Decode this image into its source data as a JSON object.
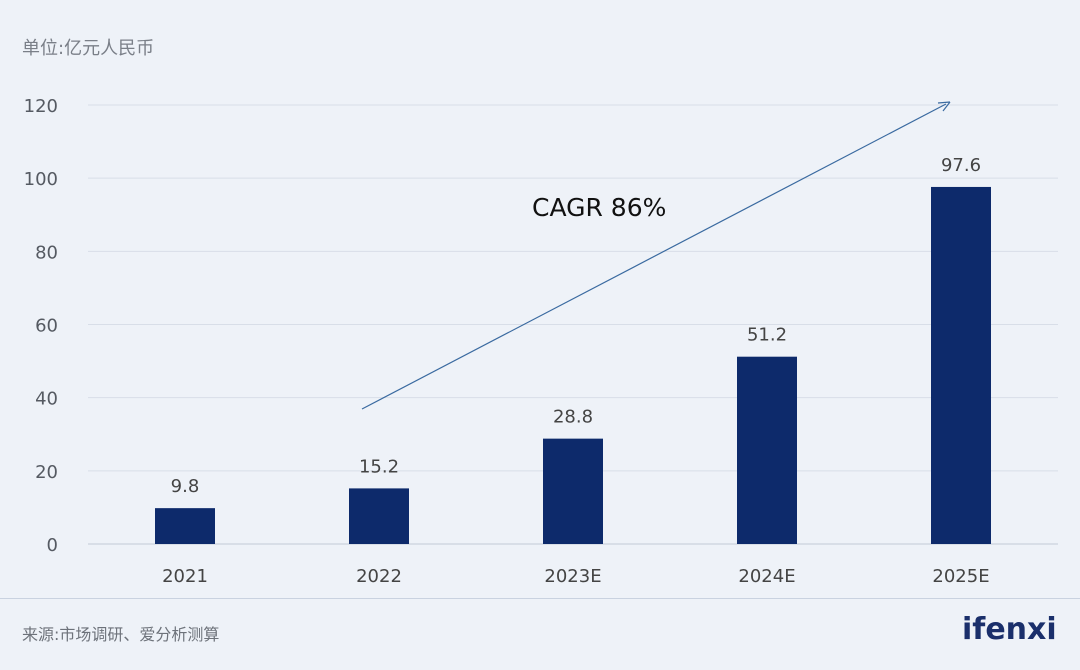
{
  "unit_label": "单位:亿元人民币",
  "source": "来源:市场调研、爱分析测算",
  "logo": "ifenxi",
  "chart_data": {
    "type": "bar",
    "categories": [
      "2021",
      "2022",
      "2023E",
      "2024E",
      "2025E"
    ],
    "values": [
      9.8,
      15.2,
      28.8,
      51.2,
      97.6
    ],
    "data_labels": [
      "9.8",
      "15.2",
      "28.8",
      "51.2",
      "97.6"
    ],
    "ylim": [
      0,
      120
    ],
    "yticks": [
      0,
      20,
      40,
      60,
      80,
      100,
      120
    ],
    "grid": true,
    "annotation": "CAGR 86%",
    "bar_color": "#0d2a6b",
    "arrow_color": "#3a6aa0"
  }
}
